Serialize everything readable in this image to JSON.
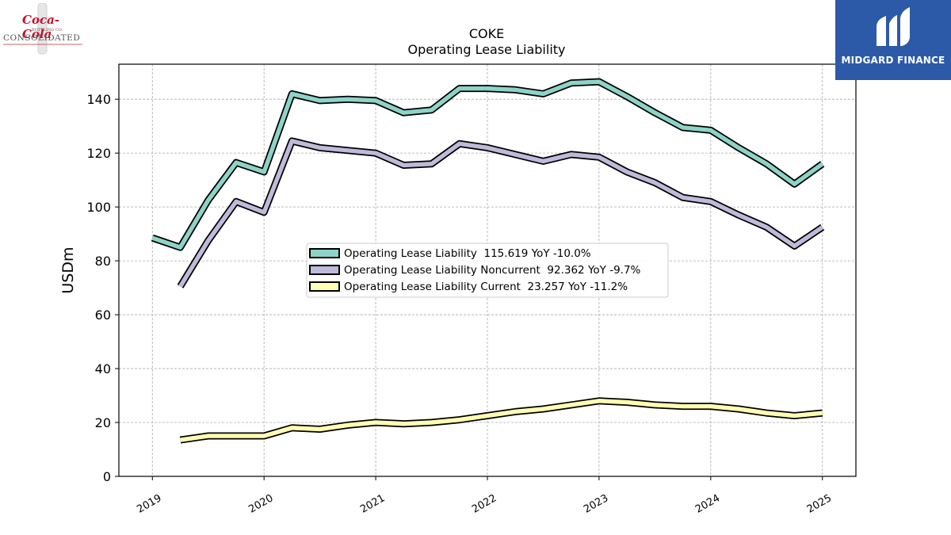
{
  "logos": {
    "left": {
      "script": "Coca-Cola",
      "small": "BOTTLING CO.",
      "main": "CONSOLIDATED"
    },
    "right": {
      "brand": "MIDGARD FINANCE",
      "color": "#2c5aa8"
    }
  },
  "chart_data": {
    "type": "line",
    "title": "COKE",
    "subtitle": "Operating Lease Liability",
    "ylabel": "USDm",
    "xlabel": "",
    "ylim": [
      0,
      153
    ],
    "xlim": [
      2018.7,
      2025.3
    ],
    "yticks": [
      0,
      20,
      40,
      60,
      80,
      100,
      120,
      140
    ],
    "xticks": [
      "2019",
      "2020",
      "2021",
      "2022",
      "2023",
      "2024",
      "2025"
    ],
    "grid": true,
    "legend_position": "center",
    "series": [
      {
        "name": "Operating Lease Liability",
        "legend": "Operating Lease Liability  115.619 YoY -10.0%",
        "color": "#8dd3c7",
        "x": [
          2019.0,
          2019.25,
          2019.5,
          2019.75,
          2020.0,
          2020.25,
          2020.5,
          2020.75,
          2021.0,
          2021.25,
          2021.5,
          2021.75,
          2022.0,
          2022.25,
          2022.5,
          2022.75,
          2023.0,
          2023.25,
          2023.5,
          2023.75,
          2024.0,
          2024.25,
          2024.5,
          2024.75,
          2025.0
        ],
        "values": [
          88.5,
          85.0,
          102.5,
          116.5,
          113.0,
          142.0,
          139.5,
          140.0,
          139.5,
          135.0,
          136.0,
          144.0,
          144.0,
          143.5,
          142.0,
          146.0,
          146.5,
          141.0,
          135.0,
          129.5,
          128.5,
          122.0,
          116.0,
          108.5,
          116.0
        ]
      },
      {
        "name": "Operating Lease Liability Noncurrent",
        "legend": "Operating Lease Liability Noncurrent  92.362 YoY -9.7%",
        "color": "#bebada",
        "x": [
          2019.25,
          2019.5,
          2019.75,
          2020.0,
          2020.25,
          2020.5,
          2020.75,
          2021.0,
          2021.25,
          2021.5,
          2021.75,
          2022.0,
          2022.25,
          2022.5,
          2022.75,
          2023.0,
          2023.25,
          2023.5,
          2023.75,
          2024.0,
          2024.25,
          2024.5,
          2024.75,
          2025.0
        ],
        "values": [
          70.5,
          87.5,
          102.0,
          98.0,
          124.5,
          122.0,
          121.0,
          120.0,
          115.5,
          116.0,
          123.5,
          122.0,
          119.5,
          117.0,
          119.5,
          118.5,
          113.0,
          109.0,
          103.5,
          102.0,
          97.0,
          92.5,
          85.5,
          92.5
        ]
      },
      {
        "name": "Operating Lease Liability Current",
        "legend": "Operating Lease Liability Current  23.257 YoY -11.2%",
        "color": "#ffffb3",
        "x": [
          2019.25,
          2019.5,
          2019.75,
          2020.0,
          2020.25,
          2020.5,
          2020.75,
          2021.0,
          2021.25,
          2021.5,
          2021.75,
          2022.0,
          2022.25,
          2022.5,
          2022.75,
          2023.0,
          2023.25,
          2023.5,
          2023.75,
          2024.0,
          2024.25,
          2024.5,
          2024.75,
          2025.0
        ],
        "values": [
          13.5,
          15.0,
          15.0,
          15.0,
          18.0,
          17.5,
          19.0,
          20.0,
          19.5,
          20.0,
          21.0,
          22.5,
          24.0,
          25.0,
          26.5,
          28.0,
          27.5,
          26.5,
          26.0,
          26.0,
          25.0,
          23.5,
          22.5,
          23.5
        ]
      }
    ]
  }
}
